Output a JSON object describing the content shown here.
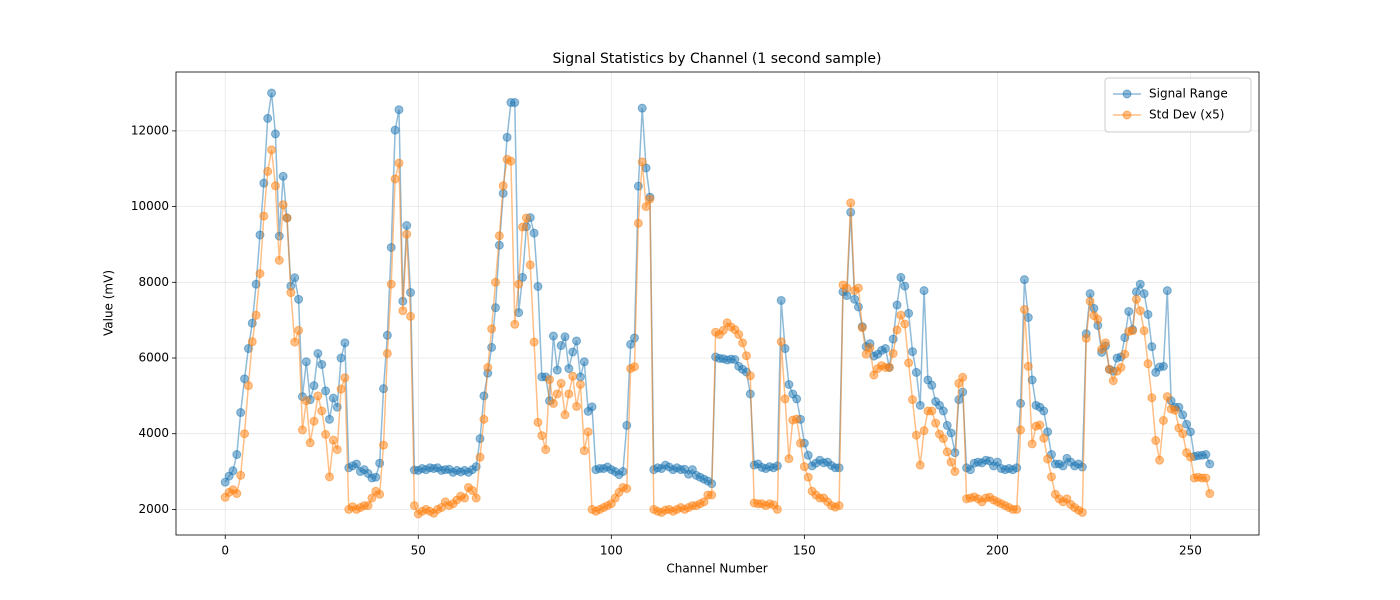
{
  "chart_data": {
    "type": "line",
    "title": "Signal Statistics by Channel (1 second sample)",
    "x_label": "Channel Number",
    "y_label": "Value (mV)",
    "x": [
      0,
      1,
      2,
      3,
      4,
      5,
      6,
      7,
      8,
      9,
      10,
      11,
      12,
      13,
      14,
      15,
      16,
      17,
      18,
      19,
      20,
      21,
      22,
      23,
      24,
      25,
      26,
      27,
      28,
      29,
      30,
      31,
      32,
      33,
      34,
      35,
      36,
      37,
      38,
      39,
      40,
      41,
      42,
      43,
      44,
      45,
      46,
      47,
      48,
      49,
      50,
      51,
      52,
      53,
      54,
      55,
      56,
      57,
      58,
      59,
      60,
      61,
      62,
      63,
      64,
      65,
      66,
      67,
      68,
      69,
      70,
      71,
      72,
      73,
      74,
      75,
      76,
      77,
      78,
      79,
      80,
      81,
      82,
      83,
      84,
      85,
      86,
      87,
      88,
      89,
      90,
      91,
      92,
      93,
      94,
      95,
      96,
      97,
      98,
      99,
      100,
      101,
      102,
      103,
      104,
      105,
      106,
      107,
      108,
      109,
      110,
      111,
      112,
      113,
      114,
      115,
      116,
      117,
      118,
      119,
      120,
      121,
      122,
      123,
      124,
      125,
      126,
      127,
      128,
      129,
      130,
      131,
      132,
      133,
      134,
      135,
      136,
      137,
      138,
      139,
      140,
      141,
      142,
      143,
      144,
      145,
      146,
      147,
      148,
      149,
      150,
      151,
      152,
      153,
      154,
      155,
      156,
      157,
      158,
      159,
      160,
      161,
      162,
      163,
      164,
      165,
      166,
      167,
      168,
      169,
      170,
      171,
      172,
      173,
      174,
      175,
      176,
      177,
      178,
      179,
      180,
      181,
      182,
      183,
      184,
      185,
      186,
      187,
      188,
      189,
      190,
      191,
      192,
      193,
      194,
      195,
      196,
      197,
      198,
      199,
      200,
      201,
      202,
      203,
      204,
      205,
      206,
      207,
      208,
      209,
      210,
      211,
      212,
      213,
      214,
      215,
      216,
      217,
      218,
      219,
      220,
      221,
      222,
      223,
      224,
      225,
      226,
      227,
      228,
      229,
      230,
      231,
      232,
      233,
      234,
      235,
      236,
      237,
      238,
      239,
      240,
      241,
      242,
      243,
      244,
      245,
      246,
      247,
      248,
      249,
      250,
      251,
      252,
      253,
      254,
      255
    ],
    "series": [
      {
        "name": "Signal Range",
        "color": "#1f77b4",
        "values": [
          2720,
          2880,
          3020,
          3450,
          4560,
          5450,
          6250,
          6920,
          7950,
          9250,
          10620,
          12330,
          13000,
          11920,
          9220,
          10800,
          9700,
          7900,
          8120,
          7550,
          4980,
          5900,
          4900,
          5270,
          6120,
          5830,
          5130,
          4380,
          4940,
          4700,
          6000,
          6400,
          3100,
          3150,
          3200,
          3000,
          3050,
          2950,
          2830,
          2850,
          3220,
          5190,
          6600,
          8920,
          12020,
          12560,
          7500,
          9500,
          7730,
          3040,
          3030,
          3080,
          3050,
          3100,
          3080,
          3100,
          3030,
          3050,
          3060,
          2980,
          3030,
          2990,
          3030,
          2980,
          3050,
          3130,
          3870,
          5000,
          5600,
          6280,
          7330,
          8980,
          10350,
          11830,
          12750,
          12750,
          7200,
          8130,
          9470,
          9710,
          9300,
          7890,
          5500,
          5500,
          4870,
          6580,
          5680,
          6330,
          6560,
          5720,
          6160,
          6450,
          5500,
          5900,
          4590,
          4710,
          3050,
          3080,
          3080,
          3120,
          3050,
          3000,
          2920,
          3000,
          4220,
          6360,
          6530,
          10540,
          12600,
          11020,
          10250,
          3050,
          3100,
          3080,
          3170,
          3120,
          3050,
          3100,
          3050,
          3060,
          2930,
          3050,
          2900,
          2850,
          2800,
          2750,
          2680,
          6030,
          5990,
          5980,
          5950,
          5970,
          5960,
          5780,
          5700,
          5630,
          5050,
          3170,
          3200,
          3110,
          3080,
          3130,
          3100,
          3150,
          7520,
          6250,
          5300,
          5050,
          4920,
          4380,
          3750,
          3430,
          3150,
          3220,
          3300,
          3230,
          3250,
          3160,
          3100,
          3100,
          7750,
          7650,
          9850,
          7550,
          7350,
          6830,
          6300,
          6380,
          6050,
          6100,
          6200,
          6250,
          5750,
          6500,
          7400,
          8130,
          7900,
          7180,
          6170,
          5620,
          4750,
          7780,
          5420,
          5280,
          4850,
          4750,
          4600,
          4220,
          4020,
          3500,
          4900,
          5100,
          3100,
          3050,
          3220,
          3250,
          3230,
          3300,
          3280,
          3150,
          3250,
          3080,
          3050,
          3080,
          3050,
          3100,
          4800,
          8070,
          7070,
          5420,
          4750,
          4700,
          4600,
          4050,
          3450,
          3200,
          3200,
          3150,
          3350,
          3250,
          3150,
          3200,
          3120,
          6640,
          7700,
          7310,
          6860,
          6150,
          6320,
          5700,
          5650,
          6000,
          6030,
          6540,
          7230,
          6750,
          7750,
          7950,
          7700,
          7150,
          6300,
          5620,
          5760,
          5780,
          7780,
          4870,
          4700,
          4700,
          4500,
          4250,
          4050,
          3400,
          3420,
          3430,
          3450,
          3200
        ]
      },
      {
        "name": "Std Dev (x5)",
        "color": "#ff7f0e",
        "values": [
          2320,
          2450,
          2520,
          2420,
          2900,
          4000,
          5270,
          6430,
          7130,
          8230,
          9750,
          10930,
          11500,
          10550,
          8580,
          10050,
          9700,
          7730,
          6420,
          6730,
          4100,
          4870,
          3760,
          4330,
          5000,
          4600,
          3980,
          2860,
          3830,
          3580,
          5180,
          5480,
          2000,
          2070,
          2000,
          2050,
          2100,
          2100,
          2300,
          2480,
          2400,
          3700,
          6120,
          7950,
          10730,
          11150,
          7250,
          9270,
          7100,
          2100,
          1880,
          1950,
          2000,
          1950,
          1900,
          2000,
          2050,
          2200,
          2100,
          2150,
          2250,
          2350,
          2300,
          2580,
          2500,
          2300,
          3380,
          4380,
          5750,
          6770,
          8000,
          9230,
          10550,
          11250,
          11200,
          6890,
          7950,
          9460,
          9700,
          8460,
          6420,
          4300,
          3950,
          3580,
          5430,
          4800,
          5050,
          5330,
          4500,
          5050,
          5520,
          4720,
          5300,
          3550,
          4050,
          2000,
          1950,
          2000,
          2050,
          2100,
          2150,
          2300,
          2450,
          2580,
          2550,
          5720,
          5770,
          9560,
          11180,
          10000,
          10200,
          2000,
          1950,
          1920,
          1980,
          2000,
          1950,
          2000,
          2050,
          2000,
          2050,
          2100,
          2100,
          2150,
          2200,
          2380,
          2380,
          6680,
          6620,
          6730,
          6930,
          6820,
          6750,
          6620,
          6400,
          6060,
          5530,
          2170,
          2150,
          2150,
          2100,
          2150,
          2120,
          2000,
          6430,
          4920,
          3340,
          4360,
          4390,
          3750,
          3130,
          2850,
          2480,
          2380,
          2300,
          2300,
          2200,
          2100,
          2060,
          2100,
          7930,
          7850,
          10100,
          7780,
          7850,
          6800,
          6100,
          6270,
          5550,
          5720,
          5800,
          5750,
          5750,
          6120,
          6740,
          7130,
          6900,
          5870,
          4900,
          3960,
          3170,
          4080,
          4600,
          4600,
          4280,
          3990,
          3870,
          3520,
          3250,
          3000,
          5330,
          5490,
          2280,
          2300,
          2330,
          2280,
          2200,
          2300,
          2320,
          2250,
          2200,
          2150,
          2100,
          2050,
          2000,
          2000,
          4100,
          7280,
          5780,
          3730,
          4200,
          4230,
          3880,
          3330,
          2860,
          2400,
          2280,
          2200,
          2280,
          2130,
          2050,
          1980,
          1920,
          6520,
          7500,
          7120,
          7020,
          6230,
          6400,
          5700,
          5400,
          5650,
          5750,
          6100,
          6700,
          6720,
          7550,
          7250,
          6720,
          5850,
          4950,
          3820,
          3300,
          4350,
          4980,
          4650,
          4620,
          4150,
          4000,
          3500,
          3380,
          2830,
          2850,
          2830,
          2830,
          2420
        ]
      }
    ],
    "xlim": [
      -12.75,
      267.75
    ],
    "xticks": [
      0,
      50,
      100,
      150,
      200,
      250
    ],
    "ylim": [
      1324,
      13556
    ],
    "yticks": [
      2000,
      4000,
      6000,
      8000,
      10000,
      12000
    ],
    "grid": true,
    "legend": "upper right"
  }
}
